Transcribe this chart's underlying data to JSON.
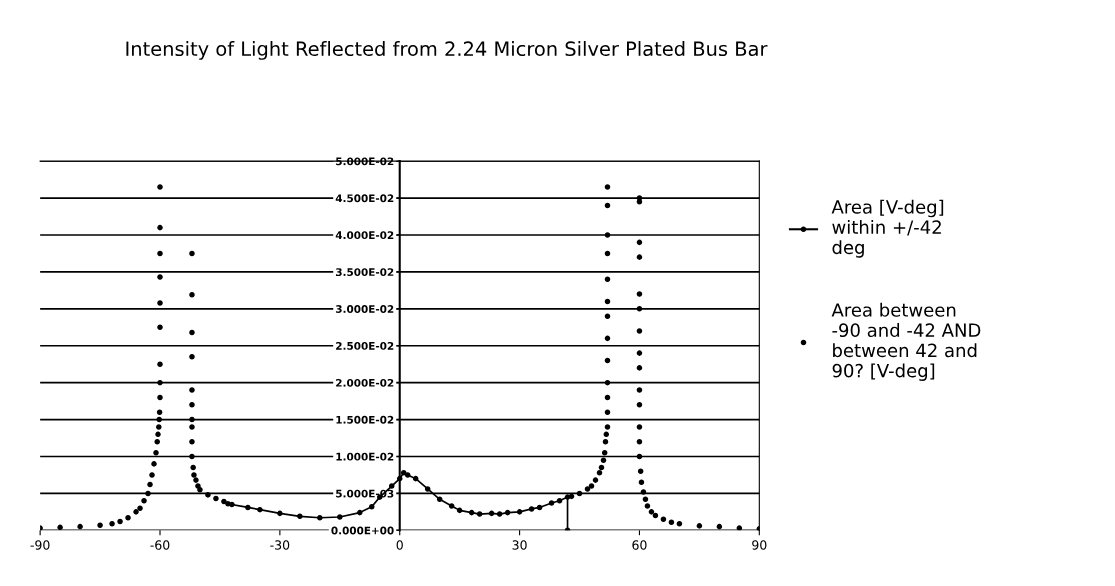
{
  "chart_data": {
    "type": "scatter",
    "title": "Intensity of Light Reflected from 2.24 Micron Silver Plated Bus Bar",
    "xlim": [
      -90,
      90
    ],
    "xticks": [
      -90,
      -60,
      -30,
      0,
      30,
      60,
      90
    ],
    "ylim": [
      0,
      0.05
    ],
    "yticks": [
      {
        "value": 0,
        "label": "0.000E+00"
      },
      {
        "value": 0.005,
        "label": "5.000E-03"
      },
      {
        "value": 0.01,
        "label": "1.000E-02"
      },
      {
        "value": 0.015,
        "label": "1.500E-02"
      },
      {
        "value": 0.02,
        "label": "2.000E-02"
      },
      {
        "value": 0.025,
        "label": "2.500E-02"
      },
      {
        "value": 0.03,
        "label": "3.000E-02"
      },
      {
        "value": 0.035,
        "label": "3.500E-02"
      },
      {
        "value": 0.04,
        "label": "4.000E-02"
      },
      {
        "value": 0.045,
        "label": "4.500E-02"
      },
      {
        "value": 0.05,
        "label": "5.000E-02"
      }
    ],
    "grid": "y",
    "legend": "right",
    "marker": "circle",
    "series": [
      {
        "name": "Area [V-deg] within +/-42 deg",
        "color": "#000000",
        "type": "line",
        "line_style": "solid",
        "x": [
          -42,
          -38,
          -35,
          -30,
          -25,
          -20,
          -15,
          -10,
          -7,
          -5,
          -2,
          0,
          1,
          2,
          4,
          7,
          10,
          13,
          15,
          18,
          20,
          23,
          25,
          27,
          30,
          33,
          35,
          38,
          40,
          42,
          42
        ],
        "values": [
          0.0035,
          0.0031,
          0.0028,
          0.0023,
          0.0019,
          0.0017,
          0.0018,
          0.0024,
          0.0032,
          0.0045,
          0.006,
          0.007,
          0.0078,
          0.0075,
          0.007,
          0.0056,
          0.0042,
          0.0033,
          0.0027,
          0.0024,
          0.0022,
          0.0023,
          0.0022,
          0.0024,
          0.0025,
          0.0029,
          0.0031,
          0.0037,
          0.004,
          0.0045,
          0
        ]
      },
      {
        "name": "Area between -90 and -42 AND between 42 and 90? [V-deg]",
        "color": "#000000",
        "x": [
          -90,
          -85,
          -80,
          -75,
          -72,
          -70,
          -68,
          -66,
          -65,
          -64,
          -63,
          -62.5,
          -62,
          -61.5,
          -61,
          -60.7,
          -60.5,
          -60.3,
          -60.2,
          -60.1,
          -60,
          -60,
          -60,
          -60,
          -60,
          -60,
          -60,
          -60,
          -60,
          -52,
          -52,
          -52,
          -52,
          -52,
          -52,
          -52,
          -52,
          -52,
          -52,
          -51.7,
          -51.5,
          -51,
          -50.5,
          -50,
          -48,
          -46,
          -44,
          -43,
          43,
          45,
          47,
          48,
          49,
          50,
          50.5,
          51,
          51.3,
          51.5,
          51.7,
          52,
          52,
          52,
          52,
          52,
          52,
          52,
          52,
          52,
          52,
          52,
          52,
          52,
          60,
          60,
          60,
          60,
          60,
          60,
          60,
          60,
          60,
          60,
          60,
          60,
          60,
          60,
          60.3,
          60.5,
          61,
          61.5,
          62,
          63,
          64,
          66,
          68,
          70,
          75,
          80,
          85,
          90
        ],
        "values": [
          0.0003,
          0.0004,
          0.0005,
          0.0007,
          0.0009,
          0.0012,
          0.0017,
          0.0025,
          0.003,
          0.004,
          0.005,
          0.0062,
          0.0075,
          0.009,
          0.0105,
          0.012,
          0.013,
          0.014,
          0.015,
          0.016,
          0.018,
          0.02,
          0.0225,
          0.0275,
          0.0308,
          0.0343,
          0.0375,
          0.041,
          0.0465,
          0.017,
          0.019,
          0.0235,
          0.0268,
          0.0319,
          0.0375,
          0.015,
          0.014,
          0.012,
          0.01,
          0.0085,
          0.0075,
          0.0068,
          0.006,
          0.0055,
          0.0048,
          0.0043,
          0.0039,
          0.0036,
          0.0046,
          0.005,
          0.0056,
          0.006,
          0.0068,
          0.0078,
          0.0085,
          0.0095,
          0.0105,
          0.012,
          0.013,
          0.014,
          0.016,
          0.018,
          0.02,
          0.023,
          0.026,
          0.029,
          0.031,
          0.034,
          0.0375,
          0.04,
          0.044,
          0.0465,
          0.01,
          0.012,
          0.014,
          0.017,
          0.019,
          0.022,
          0.024,
          0.027,
          0.03,
          0.032,
          0.037,
          0.039,
          0.0445,
          0.045,
          0.008,
          0.0065,
          0.0052,
          0.0042,
          0.0033,
          0.0025,
          0.002,
          0.0015,
          0.0011,
          0.0009,
          0.0006,
          0.0005,
          0.0003,
          0.0002
        ]
      }
    ]
  }
}
